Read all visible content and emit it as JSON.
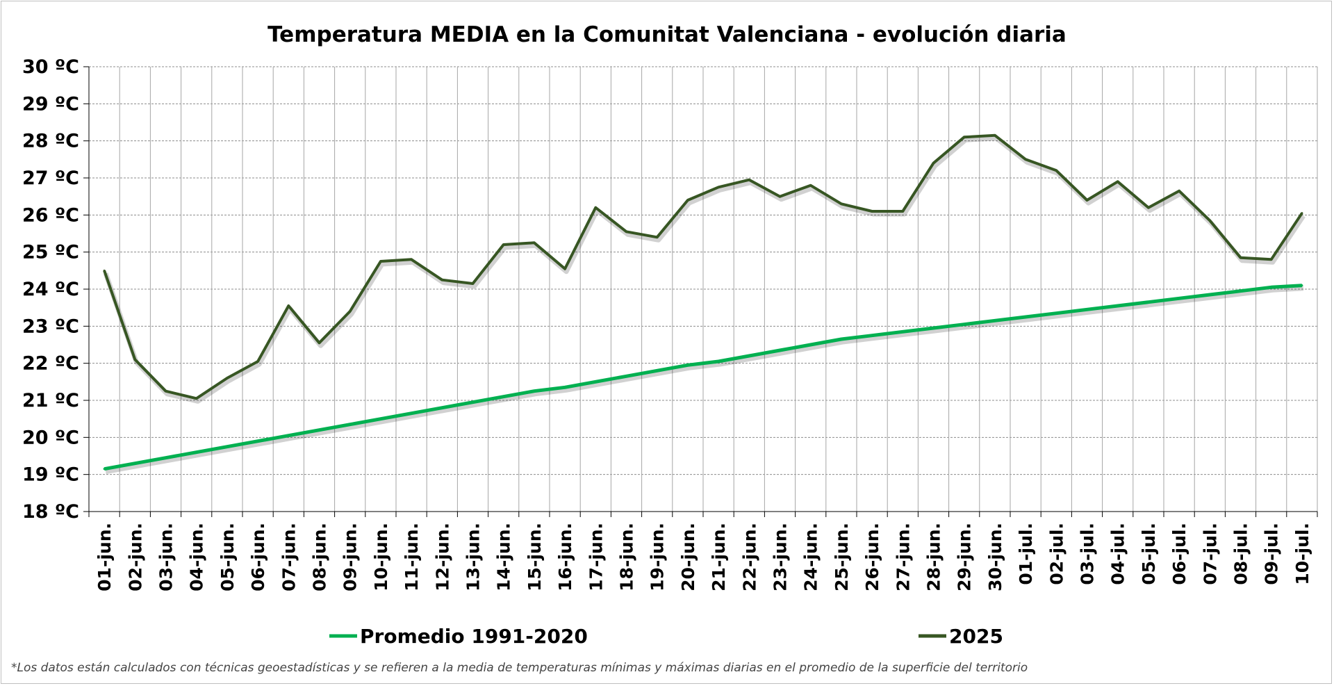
{
  "chart_data": {
    "type": "line",
    "title": "Temperatura MEDIA en la Comunitat Valenciana - evolución diaria",
    "ylim": [
      18,
      30
    ],
    "yticks": [
      "18 ºC",
      "19 ºC",
      "20 ºC",
      "21 ºC",
      "22 ºC",
      "23 ºC",
      "24 ºC",
      "25 ºC",
      "26 ºC",
      "27 ºC",
      "28 ºC",
      "29 ºC",
      "30 ºC"
    ],
    "categories": [
      "01-jun.",
      "02-jun.",
      "03-jun.",
      "04-jun.",
      "05-jun.",
      "06-jun.",
      "07-jun.",
      "08-jun.",
      "09-jun.",
      "10-jun.",
      "11-jun.",
      "12-jun.",
      "13-jun.",
      "14-jun.",
      "15-jun.",
      "16-jun.",
      "17-jun.",
      "18-jun.",
      "19-jun.",
      "20-jun.",
      "21-jun.",
      "22-jun.",
      "23-jun.",
      "24-jun.",
      "25-jun.",
      "26-jun.",
      "27-jun.",
      "28-jun.",
      "29-jun.",
      "30-jun.",
      "01-jul.",
      "02-jul.",
      "03-jul.",
      "04-jul.",
      "05-jul.",
      "06-jul.",
      "07-jul.",
      "08-jul.",
      "09-jul.",
      "10-jul."
    ],
    "grid": true,
    "legend_position": "bottom",
    "series": [
      {
        "name": "Promedio 1991-2020",
        "color": "#00b050",
        "values": [
          19.15,
          19.3,
          19.45,
          19.6,
          19.75,
          19.9,
          20.05,
          20.2,
          20.35,
          20.5,
          20.65,
          20.8,
          20.95,
          21.1,
          21.25,
          21.35,
          21.5,
          21.65,
          21.8,
          21.95,
          22.05,
          22.2,
          22.35,
          22.5,
          22.65,
          22.75,
          22.85,
          22.95,
          23.05,
          23.15,
          23.25,
          23.35,
          23.45,
          23.55,
          23.65,
          23.75,
          23.85,
          23.95,
          24.05,
          24.1
        ]
      },
      {
        "name": "2025",
        "color": "#375623",
        "values": [
          24.5,
          22.1,
          21.25,
          21.05,
          21.6,
          22.05,
          23.55,
          22.55,
          23.4,
          24.75,
          24.8,
          24.25,
          24.15,
          25.2,
          25.25,
          24.55,
          26.2,
          25.55,
          25.4,
          26.4,
          26.75,
          26.95,
          26.5,
          26.8,
          26.3,
          26.1,
          26.1,
          27.4,
          28.1,
          28.15,
          27.5,
          27.2,
          26.4,
          26.9,
          26.2,
          26.65,
          25.85,
          24.85,
          24.8,
          26.05
        ]
      }
    ],
    "footnote": "*Los datos están calculados con técnicas geoestadísticas y se refieren a la media de temperaturas mínimas y máximas diarias en el promedio de la superficie del territorio"
  }
}
